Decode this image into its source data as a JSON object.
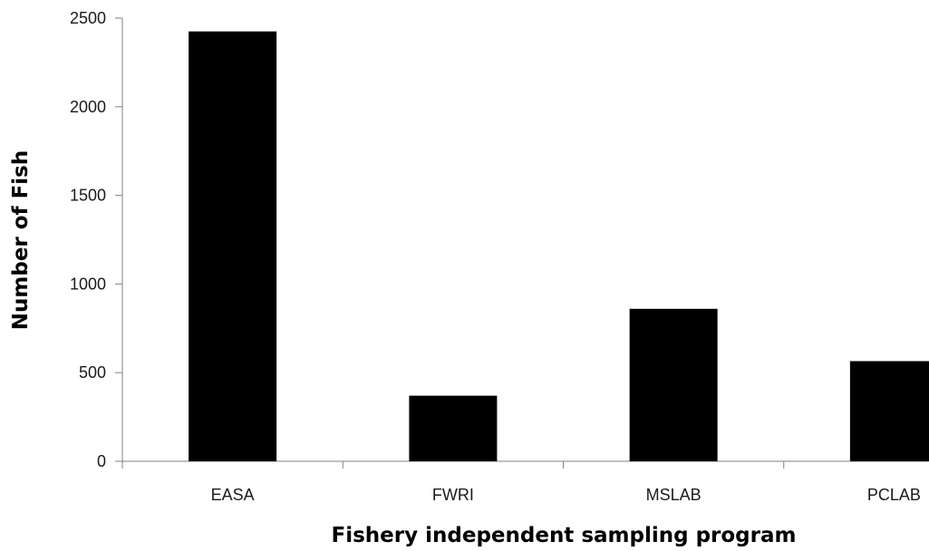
{
  "chart_data": {
    "type": "bar",
    "title": "",
    "xlabel": "Fishery independent sampling program",
    "ylabel": "Number of Fish",
    "categories": [
      "EASA",
      "FWRI",
      "MSLAB",
      "PCLAB"
    ],
    "values": [
      2425,
      370,
      860,
      565
    ],
    "ylim": [
      0,
      2500
    ],
    "yticks": [
      0,
      500,
      1000,
      1500,
      2000,
      2500
    ],
    "grid": false,
    "legend": "none",
    "bar_color": "#000000"
  }
}
